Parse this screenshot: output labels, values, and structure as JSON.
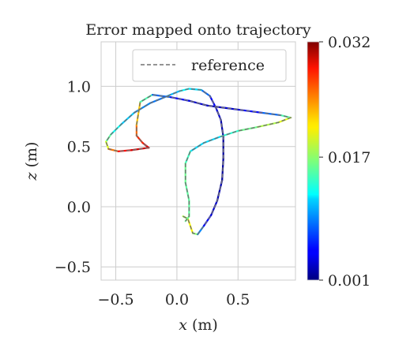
{
  "chart_data": {
    "type": "line",
    "title": "Error mapped onto trajectory",
    "xlabel_var": "x",
    "xlabel_unit": "(m)",
    "ylabel_var": "z",
    "ylabel_unit": "(m)",
    "xlim": [
      -0.62,
      0.97
    ],
    "ylim": [
      -0.61,
      1.37
    ],
    "xticks": [
      -0.5,
      0.0,
      0.5
    ],
    "xtick_labels": [
      "−0.5",
      "0.0",
      "0.5"
    ],
    "yticks": [
      -0.5,
      0.0,
      0.5,
      1.0
    ],
    "ytick_labels": [
      "−0.5",
      "0.0",
      "0.5",
      "1.0"
    ],
    "grid": true,
    "legend": {
      "position": "top-right",
      "entries": [
        {
          "label": "reference",
          "style": "dashed",
          "color": "#707070"
        }
      ]
    },
    "colorbar": {
      "colormap": "jet",
      "min": 0.001,
      "max": 0.032,
      "ticks": [
        0.001,
        0.017,
        0.032
      ],
      "tick_labels": [
        "0.001",
        "0.017",
        "0.032"
      ]
    },
    "series": [
      {
        "kind": "trajectory-colored-by-error",
        "points": [
          {
            "x": 0.05,
            "z": -0.08,
            "e": 0.017
          },
          {
            "x": 0.09,
            "z": -0.1,
            "e": 0.019
          },
          {
            "x": 0.13,
            "z": -0.22,
            "e": 0.022
          },
          {
            "x": 0.17,
            "z": -0.23,
            "e": 0.012
          },
          {
            "x": 0.22,
            "z": -0.16,
            "e": 0.006
          },
          {
            "x": 0.28,
            "z": -0.07,
            "e": 0.004
          },
          {
            "x": 0.33,
            "z": 0.05,
            "e": 0.003
          },
          {
            "x": 0.37,
            "z": 0.22,
            "e": 0.002
          },
          {
            "x": 0.38,
            "z": 0.4,
            "e": 0.002
          },
          {
            "x": 0.38,
            "z": 0.58,
            "e": 0.002
          },
          {
            "x": 0.36,
            "z": 0.72,
            "e": 0.003
          },
          {
            "x": 0.32,
            "z": 0.82,
            "e": 0.004
          },
          {
            "x": 0.27,
            "z": 0.92,
            "e": 0.006
          },
          {
            "x": 0.2,
            "z": 0.97,
            "e": 0.01
          },
          {
            "x": 0.1,
            "z": 0.98,
            "e": 0.013
          },
          {
            "x": 0.02,
            "z": 0.96,
            "e": 0.012
          },
          {
            "x": -0.1,
            "z": 0.91,
            "e": 0.009
          },
          {
            "x": -0.22,
            "z": 0.86,
            "e": 0.008
          },
          {
            "x": -0.35,
            "z": 0.78,
            "e": 0.01
          },
          {
            "x": -0.46,
            "z": 0.68,
            "e": 0.012
          },
          {
            "x": -0.54,
            "z": 0.6,
            "e": 0.014
          },
          {
            "x": -0.58,
            "z": 0.54,
            "e": 0.017
          },
          {
            "x": -0.56,
            "z": 0.48,
            "e": 0.022
          },
          {
            "x": -0.48,
            "z": 0.46,
            "e": 0.027
          },
          {
            "x": -0.37,
            "z": 0.47,
            "e": 0.029
          },
          {
            "x": -0.23,
            "z": 0.49,
            "e": 0.03
          },
          {
            "x": -0.28,
            "z": 0.53,
            "e": 0.028
          },
          {
            "x": -0.33,
            "z": 0.59,
            "e": 0.026
          },
          {
            "x": -0.33,
            "z": 0.68,
            "e": 0.024
          },
          {
            "x": -0.3,
            "z": 0.87,
            "e": 0.02
          },
          {
            "x": -0.2,
            "z": 0.93,
            "e": 0.01
          },
          {
            "x": -0.05,
            "z": 0.91,
            "e": 0.006
          },
          {
            "x": 0.1,
            "z": 0.88,
            "e": 0.004
          },
          {
            "x": 0.25,
            "z": 0.84,
            "e": 0.003
          },
          {
            "x": 0.4,
            "z": 0.82,
            "e": 0.003
          },
          {
            "x": 0.55,
            "z": 0.8,
            "e": 0.004
          },
          {
            "x": 0.7,
            "z": 0.78,
            "e": 0.006
          },
          {
            "x": 0.85,
            "z": 0.76,
            "e": 0.01
          },
          {
            "x": 0.93,
            "z": 0.74,
            "e": 0.02
          },
          {
            "x": 0.83,
            "z": 0.7,
            "e": 0.019
          },
          {
            "x": 0.65,
            "z": 0.66,
            "e": 0.017
          },
          {
            "x": 0.5,
            "z": 0.63,
            "e": 0.015
          },
          {
            "x": 0.35,
            "z": 0.58,
            "e": 0.013
          },
          {
            "x": 0.22,
            "z": 0.53,
            "e": 0.01
          },
          {
            "x": 0.11,
            "z": 0.46,
            "e": 0.013
          },
          {
            "x": 0.07,
            "z": 0.36,
            "e": 0.016
          },
          {
            "x": 0.07,
            "z": 0.2,
            "e": 0.016
          },
          {
            "x": 0.1,
            "z": 0.05,
            "e": 0.015
          },
          {
            "x": 0.1,
            "z": -0.08,
            "e": 0.016
          },
          {
            "x": 0.07,
            "z": -0.12,
            "e": 0.016
          }
        ]
      }
    ]
  }
}
